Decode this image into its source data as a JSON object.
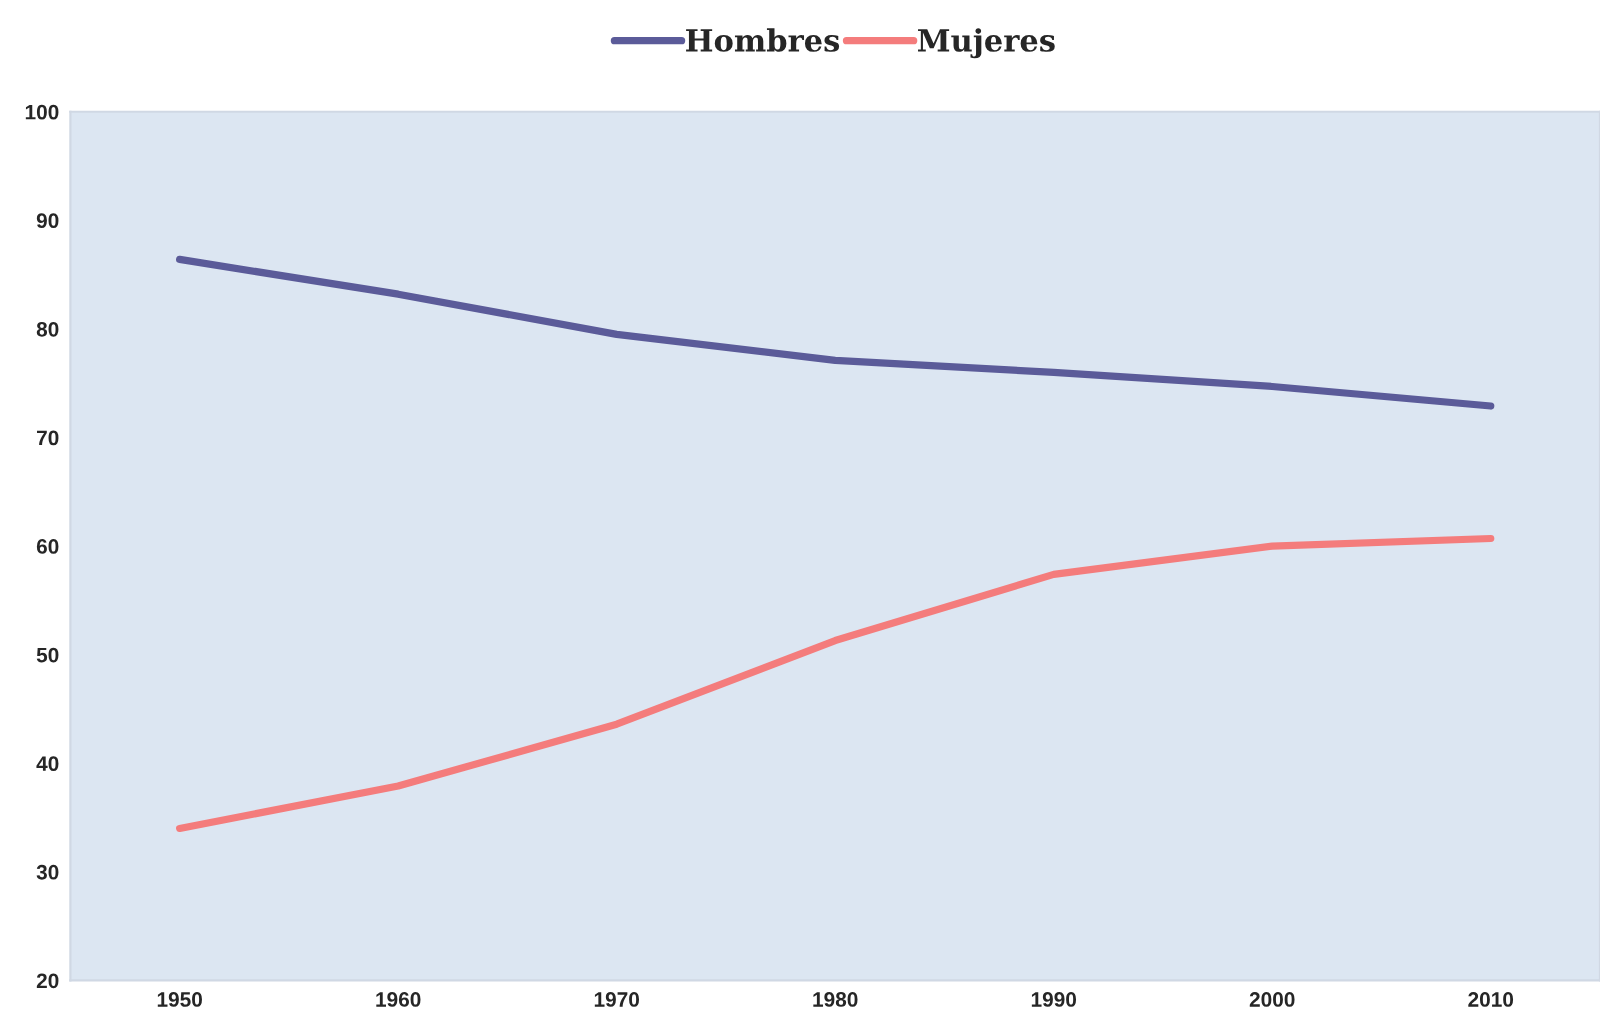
{
  "chart_data": {
    "type": "line",
    "categories": [
      "1950",
      "1960",
      "1970",
      "1980",
      "1990",
      "2000",
      "2010"
    ],
    "series": [
      {
        "name": "Hombres",
        "color": "#5b5b99",
        "values": [
          86.4,
          83.2,
          79.5,
          77.1,
          76.0,
          74.7,
          72.9
        ]
      },
      {
        "name": "Mujeres",
        "color": "#f47c7c",
        "values": [
          34.0,
          37.9,
          43.6,
          51.3,
          57.4,
          60.0,
          60.7
        ]
      }
    ],
    "ylim": [
      20,
      100
    ],
    "yticks": [
      20,
      30,
      40,
      50,
      60,
      70,
      80,
      90,
      100
    ],
    "grid": false,
    "legend": "top",
    "marker": "none",
    "line_style": "solid"
  }
}
